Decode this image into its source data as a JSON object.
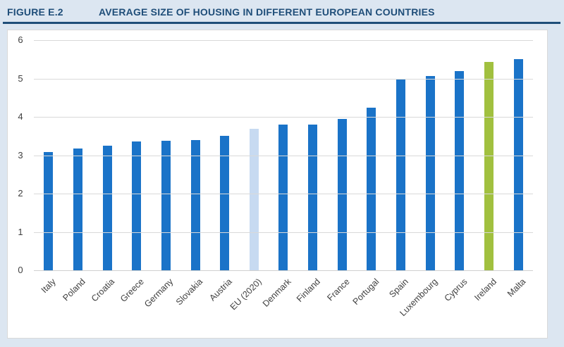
{
  "figure": {
    "label": "FIGURE E.2",
    "title": "AVERAGE SIZE OF HOUSING IN DIFFERENT EUROPEAN COUNTRIES"
  },
  "colors": {
    "page_background": "#dce6f1",
    "title_text": "#1f4e79",
    "title_rule": "#1f4e79",
    "panel_background": "#ffffff",
    "panel_border": "#d9d9d9",
    "gridline": "#d9d9d9",
    "axis_text": "#404040",
    "bar_blue": "#1a73c8",
    "bar_light_blue": "#c7daf1",
    "bar_green": "#a1c03f"
  },
  "chart_data": {
    "type": "bar",
    "title": "AVERAGE SIZE OF HOUSING IN DIFFERENT EUROPEAN COUNTRIES",
    "xlabel": "",
    "ylabel": "",
    "categories": [
      "Italy",
      "Poland",
      "Croatia",
      "Greece",
      "Germany",
      "Slovakia",
      "Austria",
      "EU (2020)",
      "Denmark",
      "Finland",
      "France",
      "Portugal",
      "Spain",
      "Luxembourg",
      "Cyprus",
      "Ireland",
      "Malta"
    ],
    "values": [
      3.08,
      3.18,
      3.24,
      3.36,
      3.38,
      3.4,
      3.5,
      3.68,
      3.79,
      3.79,
      3.94,
      4.23,
      5.0,
      5.06,
      5.19,
      5.44,
      5.5
    ],
    "bar_color_keys": [
      "blue",
      "blue",
      "blue",
      "blue",
      "blue",
      "blue",
      "blue",
      "light_blue",
      "blue",
      "blue",
      "blue",
      "blue",
      "blue",
      "blue",
      "blue",
      "green",
      "blue"
    ],
    "highlighted_bars": {
      "EU (2020)": "light_blue",
      "Ireland": "green"
    },
    "ylim": [
      0,
      6
    ],
    "yticks": [
      0,
      1,
      2,
      3,
      4,
      5,
      6
    ],
    "grid": true,
    "legend_position": "none",
    "x_tick_rotation_deg": 45
  }
}
